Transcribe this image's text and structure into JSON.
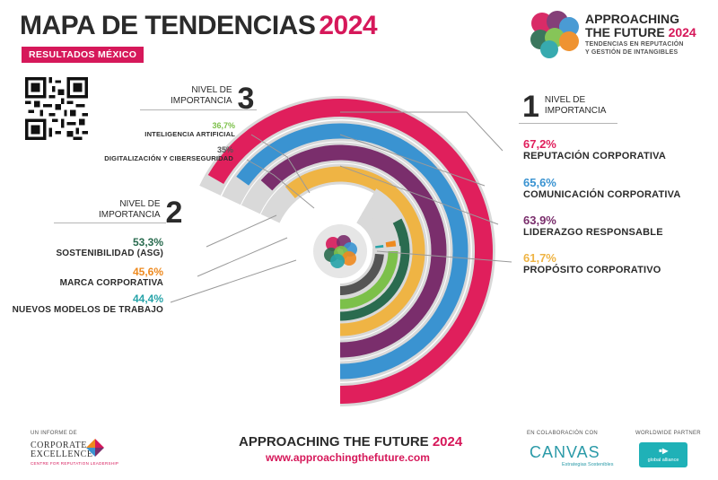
{
  "header": {
    "title_main": "MAPA DE TENDENCIAS",
    "title_year": "2024",
    "badge": "RESULTADOS MÉXICO"
  },
  "brand": {
    "line1": "APPROACHING",
    "line2_text": "THE FUTURE",
    "line2_year": "2024",
    "sub1": "TENDENCIAS EN REPUTACIÓN",
    "sub2": "Y GESTIÓN DE INTANGIBLES"
  },
  "levels": {
    "one": {
      "num": "1",
      "line1": "NIVEL DE",
      "line2": "IMPORTANCIA"
    },
    "two": {
      "num": "2",
      "line1": "NIVEL DE",
      "line2": "IMPORTANCIA"
    },
    "three": {
      "num": "3",
      "line1": "NIVEL DE",
      "line2": "IMPORTANCIA"
    }
  },
  "chart_data": {
    "type": "radial bar",
    "unit": "%",
    "series": [
      {
        "label": "REPUTACIÓN CORPORATIVA",
        "value": 67.2,
        "value_text": "67,2%",
        "level": 1,
        "color": "#e01f5c"
      },
      {
        "label": "COMUNICACIÓN CORPORATIVA",
        "value": 65.6,
        "value_text": "65,6%",
        "level": 1,
        "color": "#3a93d1"
      },
      {
        "label": "LIDERAZGO RESPONSABLE",
        "value": 63.9,
        "value_text": "63,9%",
        "level": 1,
        "color": "#7a2e6c"
      },
      {
        "label": "PROPÓSITO CORPORATIVO",
        "value": 61.7,
        "value_text": "61,7%",
        "level": 1,
        "color": "#efb444"
      },
      {
        "label": "SOSTENIBILIDAD (ASG)",
        "value": 53.3,
        "value_text": "53,3%",
        "level": 2,
        "color": "#2a6b4f"
      },
      {
        "label": "MARCA CORPORATIVA",
        "value": 45.6,
        "value_text": "45,6%",
        "level": 2,
        "color": "#ee8a1f"
      },
      {
        "label": "NUEVOS MODELOS DE TRABAJO",
        "value": 44.4,
        "value_text": "44,4%",
        "level": 2,
        "color": "#26a3a8"
      },
      {
        "label": "INTELIGENCIA ARTIFICIAL",
        "value": 36.7,
        "value_text": "36,7%",
        "level": 3,
        "color": "#7cc04a"
      },
      {
        "label": "DIGITALIZACIÓN Y CIBERSEGURIDAD",
        "value": 35,
        "value_text": "35%",
        "level": 3,
        "color": "#555555"
      }
    ]
  },
  "footer": {
    "report_caption": "UN INFORME DE",
    "ce_line1": "CORPORATE",
    "ce_line2": "EXCELLENCE",
    "ce_sub": "CENTRE FOR REPUTATION LEADERSHIP",
    "title_text": "APPROACHING THE FUTURE",
    "title_year": "2024",
    "url": "www.approachingthefuture.com",
    "collab_caption": "EN COLABORACIÓN CON",
    "canvas_name": "CANVAS",
    "canvas_sub": "Estrategias Sostenibles",
    "partner_caption": "WORLDWIDE PARTNER",
    "ga_line": "global alliance"
  }
}
